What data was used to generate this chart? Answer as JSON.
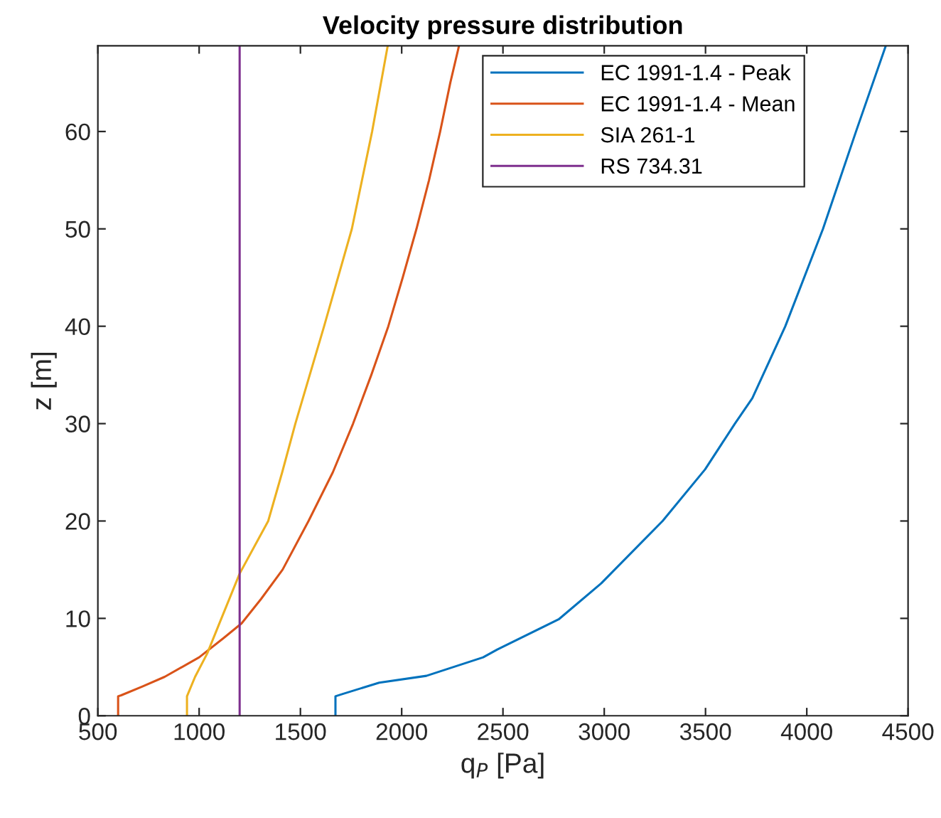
{
  "chart_data": {
    "type": "line",
    "title": "Velocity pressure distribution",
    "xlabel": "q$_{P}$ [Pa]",
    "ylabel": "z [m]",
    "xlim": [
      500,
      4500
    ],
    "xticks": [
      500,
      1000,
      1500,
      2000,
      2500,
      3000,
      3500,
      4000,
      4500
    ],
    "ylim": [
      0,
      68.8
    ],
    "yticks": [
      0,
      10,
      20,
      30,
      40,
      50,
      60
    ],
    "grid": false,
    "legend": "top right",
    "marker": "none",
    "line_style": "solid",
    "series": [
      {
        "name": "EC 1991-1.4 - Peak",
        "color": "#0072bd",
        "x": [
          1673,
          1673,
          1703,
          1889,
          2122,
          2402,
          2472,
          2775,
          2985,
          3288,
          3498,
          3645,
          3731,
          3894,
          4080,
          4243,
          4390
        ],
        "values": [
          0,
          2,
          2.2,
          3.4,
          4.1,
          6,
          6.8,
          9.9,
          13.6,
          20,
          25.3,
          30,
          32.6,
          40,
          50,
          60,
          68.8
        ]
      },
      {
        "name": "EC 1991-1.4 - Mean",
        "color": "#d95319",
        "x": [
          600,
          600,
          615,
          720,
          830,
          1000,
          1122,
          1210,
          1306,
          1412,
          1540,
          1660,
          1760,
          1850,
          1934,
          2005,
          2073,
          2135,
          2190,
          2240,
          2283
        ],
        "values": [
          0,
          2,
          2.1,
          3,
          4,
          6,
          8,
          9.5,
          12,
          15,
          20,
          25,
          30,
          35,
          40,
          45,
          50,
          55,
          60,
          65,
          68.8
        ]
      },
      {
        "name": "SIA 261-1",
        "color": "#edb120",
        "x": [
          940,
          940,
          980,
          1040,
          1110,
          1200,
          1341,
          1410,
          1475,
          1617,
          1754,
          1854,
          1931
        ],
        "values": [
          0,
          2,
          4,
          6.4,
          10,
          14.6,
          20,
          25,
          30,
          40,
          50,
          60,
          68.8
        ]
      },
      {
        "name": "RS 734.31",
        "color": "#7e2f8e",
        "x": [
          1200,
          1200
        ],
        "values": [
          0,
          68.8
        ]
      }
    ]
  }
}
